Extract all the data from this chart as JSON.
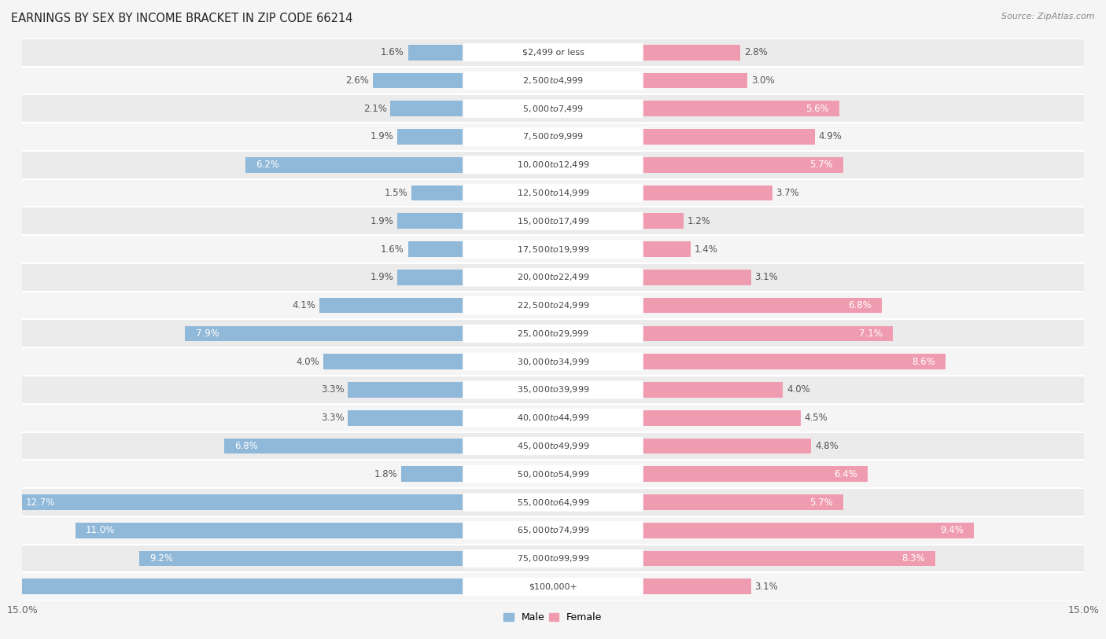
{
  "title": "EARNINGS BY SEX BY INCOME BRACKET IN ZIP CODE 66214",
  "source": "Source: ZipAtlas.com",
  "categories": [
    "$2,499 or less",
    "$2,500 to $4,999",
    "$5,000 to $7,499",
    "$7,500 to $9,999",
    "$10,000 to $12,499",
    "$12,500 to $14,999",
    "$15,000 to $17,499",
    "$17,500 to $19,999",
    "$20,000 to $22,499",
    "$22,500 to $24,999",
    "$25,000 to $29,999",
    "$30,000 to $34,999",
    "$35,000 to $39,999",
    "$40,000 to $44,999",
    "$45,000 to $49,999",
    "$50,000 to $54,999",
    "$55,000 to $64,999",
    "$65,000 to $74,999",
    "$75,000 to $99,999",
    "$100,000+"
  ],
  "male_values": [
    1.6,
    2.6,
    2.1,
    1.9,
    6.2,
    1.5,
    1.9,
    1.6,
    1.9,
    4.1,
    7.9,
    4.0,
    3.3,
    3.3,
    6.8,
    1.8,
    12.7,
    11.0,
    9.2,
    14.9
  ],
  "female_values": [
    2.8,
    3.0,
    5.6,
    4.9,
    5.7,
    3.7,
    1.2,
    1.4,
    3.1,
    6.8,
    7.1,
    8.6,
    4.0,
    4.5,
    4.8,
    6.4,
    5.7,
    9.4,
    8.3,
    3.1
  ],
  "male_color": "#90b8d8",
  "female_color": "#f09cb0",
  "bg_row_odd": "#ebebeb",
  "bg_row_even": "#f5f5f5",
  "bg_color": "#f5f5f5",
  "label_box_color": "#ffffff",
  "xlim": 15.0,
  "bar_height": 0.55,
  "title_fontsize": 10.5,
  "tick_fontsize": 9,
  "value_fontsize": 8.5,
  "category_fontsize": 8,
  "source_fontsize": 8,
  "inside_label_threshold": 5.0
}
